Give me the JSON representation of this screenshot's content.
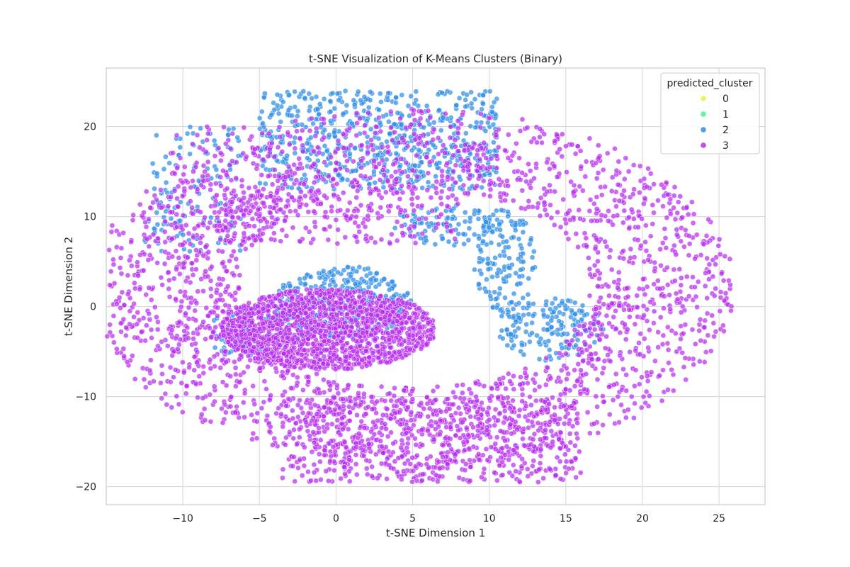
{
  "chart_data": {
    "type": "scatter",
    "title": "t-SNE Visualization of K-Means Clusters (Binary)",
    "xlabel": "t-SNE Dimension 1",
    "ylabel": "t-SNE Dimension 2",
    "xlim": [
      -15,
      28
    ],
    "ylim": [
      -22,
      26.5
    ],
    "xticks": [
      -10,
      -5,
      0,
      5,
      10,
      15,
      20,
      25
    ],
    "yticks": [
      -20,
      -10,
      0,
      10,
      20
    ],
    "xtick_labels": [
      "−10",
      "−5",
      "0",
      "5",
      "10",
      "15",
      "20",
      "25"
    ],
    "ytick_labels": [
      "−20",
      "−10",
      "0",
      "10",
      "20"
    ],
    "grid": true,
    "legend": {
      "title": "predicted_cluster",
      "position": "top-right",
      "entries": [
        {
          "label": "0",
          "color": "#e6f53d"
        },
        {
          "label": "1",
          "color": "#43f58c"
        },
        {
          "label": "2",
          "color": "#2e8de8"
        },
        {
          "label": "3",
          "color": "#b72ef0"
        }
      ]
    },
    "series": [
      {
        "name": "2",
        "color": "#2e8de8",
        "regions": [
          {
            "shape": "band",
            "x": [
              -5,
              10.5
            ],
            "y": [
              13,
              24
            ],
            "weight": 640
          },
          {
            "shape": "band",
            "x": [
              -12.5,
              -6
            ],
            "y": [
              6,
              20
            ],
            "weight": 130
          },
          {
            "shape": "ellipse",
            "center": [
              0.5,
              0.5
            ],
            "radii": [
              4.5,
              4
            ],
            "weight": 340
          },
          {
            "shape": "ellipse",
            "center": [
              -5,
              -3
            ],
            "radii": [
              3.5,
              3
            ],
            "weight": 130
          },
          {
            "shape": "ellipse",
            "center": [
              11,
              5
            ],
            "radii": [
              2,
              6
            ],
            "weight": 150
          },
          {
            "shape": "ellipse",
            "center": [
              14,
              -2.5
            ],
            "radii": [
              3.5,
              3.5
            ],
            "weight": 160
          },
          {
            "shape": "ellipse",
            "center": [
              7,
              9
            ],
            "radii": [
              3.5,
              2.5
            ],
            "weight": 90
          }
        ]
      },
      {
        "name": "3",
        "color": "#b72ef0",
        "regions": [
          {
            "shape": "ring",
            "center": [
              5,
              2
            ],
            "radii": [
              21,
              20
            ],
            "width": [
              0.55,
              1.0
            ],
            "weight": 2200
          },
          {
            "shape": "ellipse",
            "center": [
              -0.5,
              -2.5
            ],
            "radii": [
              7,
              4.5
            ],
            "weight": 1500
          },
          {
            "shape": "band",
            "x": [
              -3.5,
              16
            ],
            "y": [
              -19.5,
              -10
            ],
            "weight": 650
          },
          {
            "shape": "band",
            "x": [
              -11,
              -6
            ],
            "y": [
              -9,
              20
            ],
            "weight": 120
          },
          {
            "shape": "band",
            "x": [
              -8,
              8
            ],
            "y": [
              7,
              13
            ],
            "weight": 240
          }
        ]
      }
    ]
  }
}
